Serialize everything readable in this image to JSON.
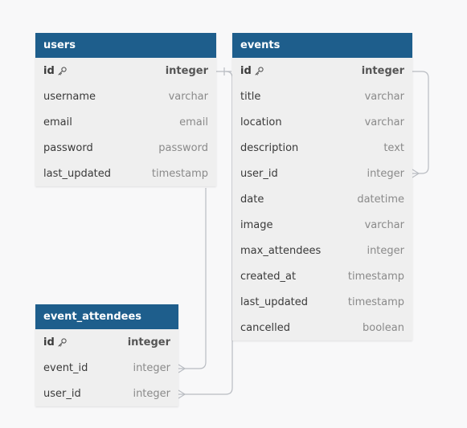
{
  "colors": {
    "background": "#f8f8f9",
    "header": "#1e5e8c",
    "table_body": "#efefef",
    "connector": "#b9bcc2"
  },
  "tables": {
    "users": {
      "name": "users",
      "columns": [
        {
          "name": "id",
          "type": "integer",
          "primary_key": true
        },
        {
          "name": "username",
          "type": "varchar"
        },
        {
          "name": "email",
          "type": "email"
        },
        {
          "name": "password",
          "type": "password"
        },
        {
          "name": "last_updated",
          "type": "timestamp"
        }
      ]
    },
    "events": {
      "name": "events",
      "columns": [
        {
          "name": "id",
          "type": "integer",
          "primary_key": true
        },
        {
          "name": "title",
          "type": "varchar"
        },
        {
          "name": "location",
          "type": "varchar"
        },
        {
          "name": "description",
          "type": "text"
        },
        {
          "name": "user_id",
          "type": "integer"
        },
        {
          "name": "date",
          "type": "datetime"
        },
        {
          "name": "image",
          "type": "varchar"
        },
        {
          "name": "max_attendees",
          "type": "integer"
        },
        {
          "name": "created_at",
          "type": "timestamp"
        },
        {
          "name": "last_updated",
          "type": "timestamp"
        },
        {
          "name": "cancelled",
          "type": "boolean"
        }
      ]
    },
    "event_attendees": {
      "name": "event_attendees",
      "columns": [
        {
          "name": "id",
          "type": "integer",
          "primary_key": true
        },
        {
          "name": "event_id",
          "type": "integer"
        },
        {
          "name": "user_id",
          "type": "integer"
        }
      ]
    }
  },
  "relationships": [
    {
      "from": "events.user_id",
      "to": "users.id",
      "type": "many-to-one"
    },
    {
      "from": "event_attendees.event_id",
      "to": "events.id",
      "type": "many-to-one"
    },
    {
      "from": "event_attendees.user_id",
      "to": "users.id",
      "type": "many-to-one"
    }
  ]
}
